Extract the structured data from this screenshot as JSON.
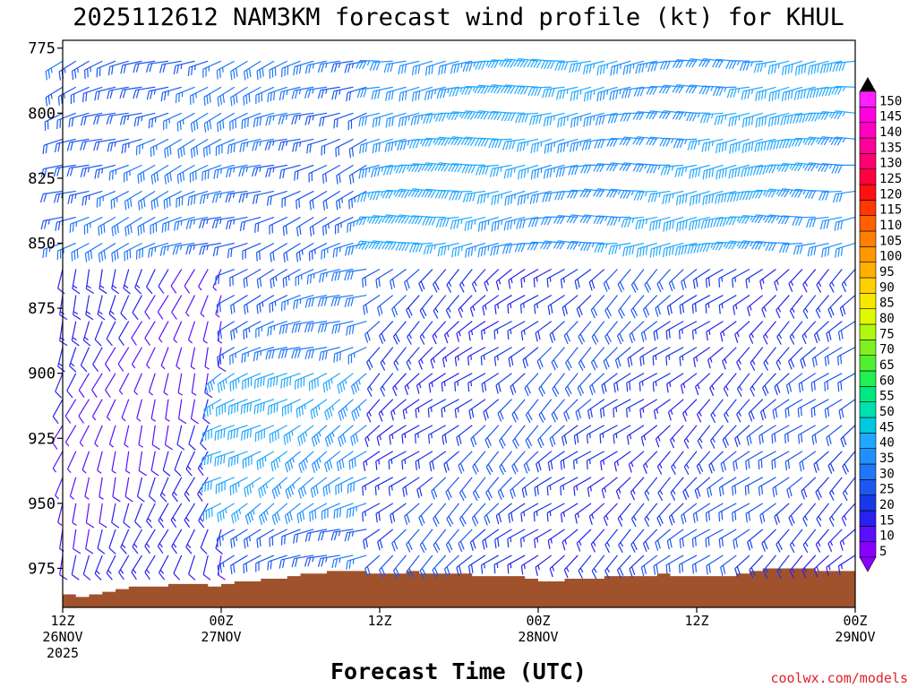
{
  "chart_data": {
    "type": "wind-barb-profile",
    "title": "2025112612 NAM3KM forecast wind profile (kt) for KHUL",
    "xlabel": "Forecast Time (UTC)",
    "ylabel": "",
    "credit": "coolwx.com/models",
    "y_axis": {
      "units": "hPa",
      "ylim": [
        990,
        772
      ],
      "ticks": [
        {
          "value": 775,
          "label": "775"
        },
        {
          "value": 800,
          "label": "800"
        },
        {
          "value": 825,
          "label": "825"
        },
        {
          "value": 850,
          "label": "850"
        },
        {
          "value": 875,
          "label": "875"
        },
        {
          "value": 900,
          "label": "900"
        },
        {
          "value": 925,
          "label": "925"
        },
        {
          "value": 950,
          "label": "950"
        },
        {
          "value": 975,
          "label": "975"
        }
      ]
    },
    "x_axis": {
      "units": "forecast hour",
      "xlim": [
        0,
        60
      ],
      "ticks": [
        {
          "value": 0,
          "line1": "12Z",
          "line2": "26NOV",
          "line3": "2025"
        },
        {
          "value": 12,
          "line1": "00Z",
          "line2": "27NOV",
          "line3": ""
        },
        {
          "value": 24,
          "line1": "12Z",
          "line2": "",
          "line3": ""
        },
        {
          "value": 36,
          "line1": "00Z",
          "line2": "28NOV",
          "line3": ""
        },
        {
          "value": 48,
          "line1": "12Z",
          "line2": "",
          "line3": ""
        },
        {
          "value": 60,
          "line1": "00Z",
          "line2": "29NOV",
          "line3": ""
        }
      ]
    },
    "colorbar": {
      "units": "kt",
      "levels": [
        "5",
        "10",
        "15",
        "20",
        "25",
        "30",
        "35",
        "40",
        "45",
        "50",
        "55",
        "60",
        "65",
        "70",
        "75",
        "80",
        "85",
        "90",
        "95",
        "100",
        "105",
        "110",
        "115",
        "120",
        "125",
        "130",
        "135",
        "140",
        "145",
        "150"
      ],
      "colors": [
        "#8a00ff",
        "#5a10ff",
        "#2a20f0",
        "#1838e8",
        "#1c58f0",
        "#1f78f8",
        "#2090ff",
        "#20a8ff",
        "#00c8e0",
        "#00e0b0",
        "#00e880",
        "#20f050",
        "#50f030",
        "#80f020",
        "#b0f810",
        "#e0f800",
        "#f8e800",
        "#ffd000",
        "#ffb000",
        "#ff9800",
        "#ff8000",
        "#ff6000",
        "#ff3800",
        "#ff1010",
        "#ff0040",
        "#ff0070",
        "#ff0098",
        "#ff00c0",
        "#ff00e0",
        "#ff20ff"
      ]
    },
    "terrain": {
      "color": "#a0522d",
      "surface_pressure_hpa": [
        {
          "hour": 0,
          "p": 985
        },
        {
          "hour": 1,
          "p": 986
        },
        {
          "hour": 2,
          "p": 985
        },
        {
          "hour": 3,
          "p": 984
        },
        {
          "hour": 4,
          "p": 983
        },
        {
          "hour": 5,
          "p": 982
        },
        {
          "hour": 6,
          "p": 982
        },
        {
          "hour": 7,
          "p": 982
        },
        {
          "hour": 8,
          "p": 981
        },
        {
          "hour": 9,
          "p": 981
        },
        {
          "hour": 10,
          "p": 981
        },
        {
          "hour": 11,
          "p": 982
        },
        {
          "hour": 12,
          "p": 981
        },
        {
          "hour": 13,
          "p": 980
        },
        {
          "hour": 14,
          "p": 980
        },
        {
          "hour": 15,
          "p": 979
        },
        {
          "hour": 16,
          "p": 979
        },
        {
          "hour": 17,
          "p": 978
        },
        {
          "hour": 18,
          "p": 977
        },
        {
          "hour": 19,
          "p": 977
        },
        {
          "hour": 20,
          "p": 976
        },
        {
          "hour": 21,
          "p": 976
        },
        {
          "hour": 22,
          "p": 976
        },
        {
          "hour": 23,
          "p": 977
        },
        {
          "hour": 24,
          "p": 977
        },
        {
          "hour": 25,
          "p": 977
        },
        {
          "hour": 26,
          "p": 976
        },
        {
          "hour": 27,
          "p": 977
        },
        {
          "hour": 28,
          "p": 977
        },
        {
          "hour": 29,
          "p": 977
        },
        {
          "hour": 30,
          "p": 977
        },
        {
          "hour": 31,
          "p": 978
        },
        {
          "hour": 32,
          "p": 978
        },
        {
          "hour": 33,
          "p": 978
        },
        {
          "hour": 34,
          "p": 978
        },
        {
          "hour": 35,
          "p": 979
        },
        {
          "hour": 36,
          "p": 980
        },
        {
          "hour": 37,
          "p": 980
        },
        {
          "hour": 38,
          "p": 979
        },
        {
          "hour": 39,
          "p": 979
        },
        {
          "hour": 40,
          "p": 979
        },
        {
          "hour": 41,
          "p": 978
        },
        {
          "hour": 42,
          "p": 978
        },
        {
          "hour": 43,
          "p": 978
        },
        {
          "hour": 44,
          "p": 978
        },
        {
          "hour": 45,
          "p": 977
        },
        {
          "hour": 46,
          "p": 978
        },
        {
          "hour": 47,
          "p": 978
        },
        {
          "hour": 48,
          "p": 978
        },
        {
          "hour": 49,
          "p": 978
        },
        {
          "hour": 50,
          "p": 978
        },
        {
          "hour": 51,
          "p": 977
        },
        {
          "hour": 52,
          "p": 976
        },
        {
          "hour": 53,
          "p": 975
        },
        {
          "hour": 54,
          "p": 975
        },
        {
          "hour": 55,
          "p": 975
        },
        {
          "hour": 56,
          "p": 975
        },
        {
          "hour": 57,
          "p": 976
        },
        {
          "hour": 58,
          "p": 976
        },
        {
          "hour": 59,
          "p": 976
        },
        {
          "hour": 60,
          "p": 976
        }
      ]
    },
    "wind_field": {
      "pressure_levels_hpa": [
        780,
        790,
        800,
        810,
        820,
        830,
        840,
        850,
        860,
        870,
        880,
        890,
        900,
        910,
        920,
        930,
        940,
        950,
        960,
        970
      ],
      "hours": [
        0,
        1,
        2,
        3,
        4,
        5,
        6,
        7,
        8,
        9,
        10,
        11,
        12,
        13,
        14,
        15,
        16,
        17,
        18,
        19,
        20,
        21,
        22,
        23,
        24,
        25,
        26,
        27,
        28,
        29,
        30,
        31,
        32,
        33,
        34,
        35,
        36,
        37,
        38,
        39,
        40,
        41,
        42,
        43,
        44,
        45,
        46,
        47,
        48,
        49,
        50,
        51,
        52,
        53,
        54,
        55,
        56,
        57,
        58,
        59,
        60
      ],
      "description_regimes": [
        {
          "hours": [
            0,
            24
          ],
          "levels": [
            780,
            850
          ],
          "direction_deg": 250,
          "speed_kt": 25
        },
        {
          "hours": [
            24,
            60
          ],
          "levels": [
            780,
            850
          ],
          "direction_deg": 265,
          "speed_kt": 35
        },
        {
          "hours": [
            0,
            12
          ],
          "levels": [
            860,
            970
          ],
          "direction_deg": 200,
          "speed_kt": 10
        },
        {
          "hours": [
            12,
            24
          ],
          "levels": [
            900,
            950
          ],
          "direction_deg": 240,
          "speed_kt": 35
        },
        {
          "hours": [
            24,
            60
          ],
          "levels": [
            860,
            970
          ],
          "direction_deg": 230,
          "speed_kt": 18
        }
      ]
    }
  }
}
